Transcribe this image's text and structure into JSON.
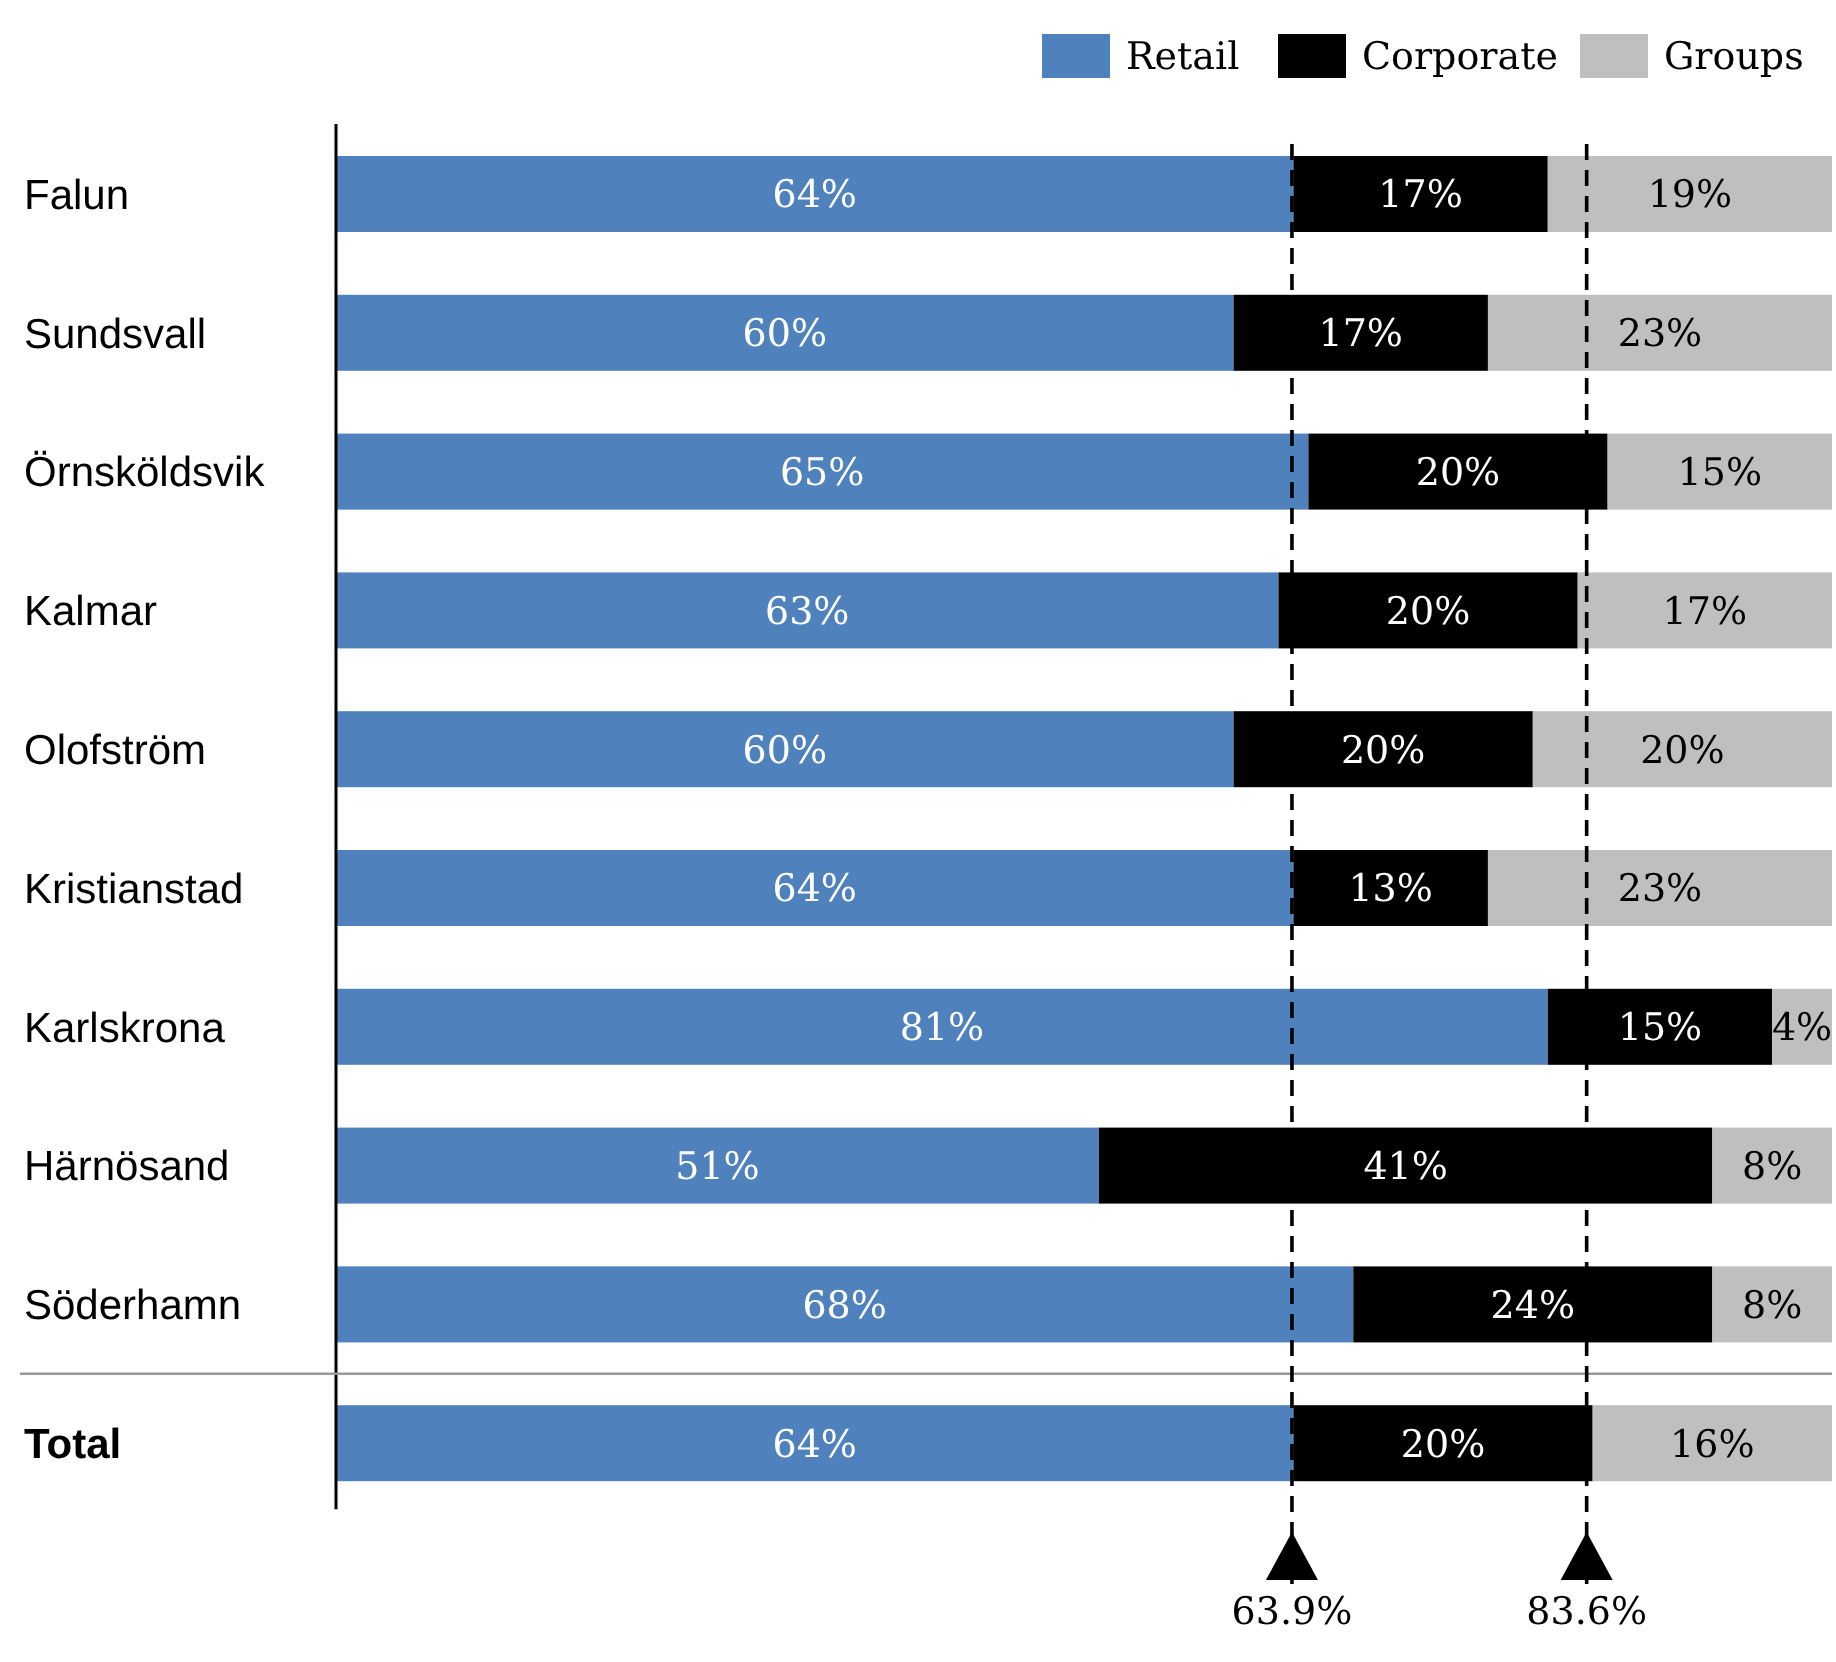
{
  "chart_data": {
    "type": "bar",
    "orientation": "horizontal",
    "stacked": true,
    "categories": [
      "Falun",
      "Sundsvall",
      "Örnsköldsvik",
      "Kalmar",
      "Olofström",
      "Kristianstad",
      "Karlskrona",
      "Härnösand",
      "Söderhamn",
      "Total"
    ],
    "series": [
      {
        "name": "Retail",
        "color": "#4f81bd",
        "values": [
          64,
          60,
          65,
          63,
          60,
          64,
          81,
          51,
          68,
          64
        ],
        "value_labels": [
          "64%",
          "60%",
          "65%",
          "63%",
          "60%",
          "64%",
          "81%",
          "51%",
          "68%",
          "64%"
        ]
      },
      {
        "name": "Corporate",
        "color": "#000000",
        "values": [
          17,
          17,
          20,
          20,
          20,
          13,
          15,
          41,
          24,
          20
        ],
        "value_labels": [
          "17%",
          "17%",
          "20%",
          "20%",
          "20%",
          "13%",
          "15%",
          "41%",
          "24%",
          "20%"
        ]
      },
      {
        "name": "Groups",
        "color": "#bfbfbf",
        "values": [
          19,
          23,
          15,
          17,
          20,
          23,
          4,
          8,
          8,
          16
        ],
        "value_labels": [
          "19%",
          "23%",
          "15%",
          "17%",
          "20%",
          "23%",
          "4%",
          "8%",
          "8%",
          "16%"
        ]
      }
    ],
    "xlim": [
      0,
      100
    ],
    "tick_labels": "y",
    "legend": "top right",
    "ref_lines": [
      {
        "axis": "x",
        "value": 63.9,
        "label": "63.9%",
        "line_style": "dashed",
        "color": "#000000"
      },
      {
        "axis": "x",
        "value": 83.6,
        "label": "83.6%",
        "line_style": "dashed",
        "color": "#000000"
      }
    ]
  }
}
